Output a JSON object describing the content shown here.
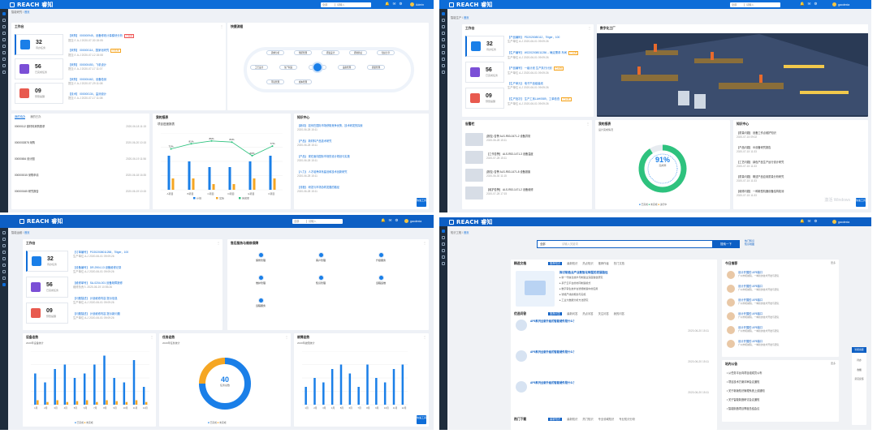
{
  "panels": {
    "tl": {
      "brand": "REACH 睿知",
      "search": {
        "scope": "全部",
        "placeholder": "请输入"
      },
      "user": "Admin",
      "breadcrumb": {
        "home": "智能研究",
        "current": "首页"
      },
      "workbench": "工作台",
      "quick": "快捷流程",
      "stats": [
        {
          "n": "32",
          "l": "待办任务"
        },
        {
          "n": "56",
          "l": "已完成任务"
        },
        {
          "n": "09",
          "l": "预警提醒"
        }
      ],
      "tasks": [
        {
          "title": "【采购】 000000945，设备修改计量模块分析",
          "tag": "已逾期",
          "meta": "提交人  A-J      2020-07-30 15:05"
        },
        {
          "title": "【采购】 000000114，国家化研究",
          "tag": "待处理",
          "meta": "提交人  A-J      2020-07-12 15:08"
        },
        {
          "title": "【采购】 000000450，飞机设计",
          "tag": "",
          "meta": "提交人  A-J      2020-07-17 11:07"
        },
        {
          "title": "【采购】 000000462，设备检测",
          "tag": "",
          "meta": "提交人  A-J      2020-07-29 11:08"
        },
        {
          "title": "【技术】 000000134，监测设计",
          "tag": "",
          "meta": "提交人  A-J      2020-07-17 11:08"
        }
      ],
      "flows": [
        "需求分析",
        "预研管理",
        "研发设计",
        "研制验证",
        "知识分享",
        "工艺设计",
        "生产制造",
        "维修保养",
        "设备管理",
        "质量管理",
        "环境管理",
        "成本管理"
      ],
      "lower": {
        "tabs": [
          "我的待办",
          "我的已办"
        ],
        "rows": [
          {
            "t": "00000112 原材料采购需求",
            "d": "2020-06-18 11:15"
          },
          {
            "t": "0000002878 采购",
            "d": "2020-06-20 10:15"
          },
          {
            "t": "00000654 设计图",
            "d": "2020-06-19 11:56"
          },
          {
            "t": "000000015 采购申请",
            "d": "2020-06-18 16:35"
          },
          {
            "t": "000000165 研究报告",
            "d": "2020-06-19 10:15"
          }
        ],
        "chart_title": "我的报表",
        "chart_sub": "项目进度报表",
        "news_title": "知识中心",
        "news": [
          {
            "t": "【新闻】 如何在国际市场获取竞争优势，技术研发的探索",
            "d": "2020-06-28 15:11"
          },
          {
            "t": "【产品】 新材料产品技术研究",
            "d": "2020-06-28 15:11"
          },
          {
            "t": "【产品】 现在面向国际市场的设计规划与实施",
            "d": "2020-06-28 15:11"
          },
          {
            "t": "【人力】 人才培养体系建设和技术创新研究",
            "d": "2020-06-28 15:11"
          },
          {
            "t": "【流程】 研发与市场协同发展的路径",
            "d": "2020-06-28 15:11"
          }
        ],
        "legend": [
          "计划",
          "实际",
          "完成率"
        ]
      }
    },
    "tr": {
      "brand": "REACH 睿知",
      "user": "gaodexia",
      "breadcrumb": {
        "home": "智能生产",
        "current": "首页"
      },
      "workbench": "工作台",
      "factory": "数字化工厂",
      "stats": [
        {
          "n": "32",
          "l": "待办任务"
        },
        {
          "n": "56",
          "l": "已完成任务"
        },
        {
          "n": "09",
          "l": "预警提醒"
        }
      ],
      "tasks": [
        {
          "title": "【产品编码】 PD2020080112，Tiliger，100",
          "meta": "生产单位  A-J   2020-06-01 09:09:26"
        },
        {
          "title": "【生产编号】 WO202008011256 -- 确定需求-车间",
          "tag": "已完成",
          "meta": "生产单位  A-J   2020-06-01 09:09:26"
        },
        {
          "title": "【产品编号】 一级计划 生产执行计划",
          "tag": "已完成",
          "meta": "生产单位  A-J   2020-06-01 09:09:26"
        },
        {
          "title": "【生产单元】 电子产品组装线",
          "meta": "生产单位  A-J   2020-06-01 09:09:26"
        },
        {
          "title": "【生产批次】 生产工序LAH0589，工单检查",
          "tag": "已完成",
          "meta": "生产单位  A-J   2020-06-01 09:09:26"
        }
      ],
      "alarm_title": "告警栏",
      "report_title": "我的报表",
      "report_sub": "设计完成情况",
      "pct": "91%",
      "pct_label": "完成率",
      "news_title": "知识中心",
      "alarms": [
        {
          "t": "(报告) 告警 ALS-R53-0471-2 设备异常",
          "d": "2020-06-28 15:11"
        },
        {
          "t": "【工作告警】 ALS-R53-1471-3 设备温度",
          "d": "2020-07-28 15:11"
        },
        {
          "t": "(报告) 告警 ALS-R53-1471-8 设备报废",
          "d": "2020-06-30 11:15"
        },
        {
          "t": "【维护告警】 ALS-R53-1471-2 设备维修",
          "d": "2020-07-28 17:15"
        }
      ],
      "news": [
        {
          "t": "【质量问题】 设备工作点维护知识",
          "d": "2020-07-15 09:02"
        },
        {
          "t": "【产品问题】 ID设备研究报告",
          "d": "2020-07-15 11:33"
        },
        {
          "t": "【工艺问题】 绿色产品生产运行设计研究",
          "d": "2020-07-15 11:33"
        },
        {
          "t": "【质量问题】 概述产品应用质量分析研究",
          "d": "2020-07-15 11:33"
        },
        {
          "t": "【维修问题】 一种新型机器设备结构检测",
          "d": "2020-07-15 11:33"
        }
      ],
      "legend": [
        "已完成",
        "未完成",
        "进行中"
      ],
      "watermark": "激活 Windows"
    },
    "bl": {
      "brand": "REACH 睿知",
      "user": "gaodexia",
      "breadcrumb": {
        "home": "智能运维",
        "current": "首页"
      },
      "workbench": "工作台",
      "ops_title": "售后服务与维修保障",
      "stats": [
        {
          "n": "32",
          "l": "待办任务"
        },
        {
          "n": "56",
          "l": "已完成任务"
        },
        {
          "n": "09",
          "l": "预警提醒"
        }
      ],
      "tasks": [
        {
          "title": "【订单编号】 PO202008011258，Tiliger，100",
          "meta": "生产单位  A-J   2020-06-01 09:09:26"
        },
        {
          "title": "【设备编号】 DR-2904-13 设备维修记录",
          "meta": "生产单位  A-J   2020-06-01 09:09:26"
        },
        {
          "title": "【维修单号】 SA-0204-001 设备故障报修",
          "meta": "维修负责人  2020-06-19 10:55:26"
        },
        {
          "title": "【问题描述】 计划维修内容 提示信息",
          "meta": "生产单位  A-J   2020-06-01 09:09:26"
        },
        {
          "title": "【问题描述】 计划维修内容 提示新问题",
          "meta": "生产单位  A-J   2020-06-01 09:09:26"
        }
      ],
      "ops": [
        "保修管理",
        "客户管理",
        "升级服务",
        "维护管理",
        "知识管理",
        "远程运维",
        "远程服务"
      ],
      "chart1_title": "设备态势",
      "chart1_sub": "2020年设备统计",
      "chart2_title": "任务态势",
      "chart2_sub": "2020年任务统计",
      "center": "40",
      "center_label": "任务总数",
      "chart3_title": "故障态势",
      "chart3_sub": "2020年故障统计",
      "legend": [
        "已完成",
        "未完成"
      ]
    },
    "br": {
      "brand": "REACH 睿知",
      "user": "gaodexia",
      "breadcrumb": {
        "home": "知识工程",
        "current": "首页"
      },
      "search": {
        "scope": "全部",
        "placeholder": "请输入关键词",
        "button": "搜索一下"
      },
      "hot1": "热门知识",
      "hot2": "知识地图",
      "recommend": "精选文档",
      "tabs1": [
        "推荐知识",
        "最新知识",
        "热点知识",
        "推荐作者",
        "热门文档"
      ],
      "doc_title": "探讨制造业产业数智化转型的发展路径",
      "doc_lines": [
        "新一代信息技术与制造业深度融合研究",
        "基于云平台的协同制造模式",
        "数字孪生技术在智能制造中的应用",
        "智能产线的规划与实施",
        "工业大数据分析方法研究"
      ],
      "qa": "优选问答",
      "tabs2": [
        "推荐问答",
        "最新问答",
        "热点问答",
        "关注问答",
        "我的问答"
      ],
      "qa_items": [
        {
          "t": "AP8系列全新升级的智能硬件是什么？",
          "d": "2020-06-20 15:11"
        },
        {
          "t": "AP8系列全新升级的智能硬件是什么？",
          "d": "2020-06-20 15:11"
        },
        {
          "t": "AP8系列全新升级的智能硬件是什么？",
          "d": "2020-06-20 15:11"
        }
      ],
      "hotdown": "热门下载",
      "tabs3": [
        "最新知识",
        "最新知识",
        "热门知识",
        "专业领域知识",
        "专业知识分析"
      ],
      "today": "今日推荐",
      "more": "更多",
      "recs": [
        {
          "t": "设计开展的 AP8接口",
          "s": "广州市机械院，一种新的技术开发与研究"
        },
        {
          "t": "设计开展的 AP8接口",
          "s": "广州市机械院，一种新的技术开发与研究"
        },
        {
          "t": "设计开展的 AP8接口",
          "s": "广州市机械院，一种新的技术开发与研究"
        },
        {
          "t": "设计开展的 AP8接口",
          "s": "广州市机械院，一种新的技术开发与研究"
        },
        {
          "t": "设计开展的 AP8接口",
          "s": "广州市机械院，一种新的技术开发与研究"
        },
        {
          "t": "设计开展的 AP8接口",
          "s": "广州市机械院，一种新的技术开发与研究"
        }
      ],
      "notice": "站内公告",
      "notices": [
        "从任务平台向项目组成员公布",
        "项目技术方案评审会议通知",
        "关于新版知识管理系统上线通知",
        "关于智能制造研讨会议通知",
        "智能制造项目季度总结会议"
      ],
      "float": [
        "智能客服",
        "待办",
        "收藏",
        "意见反馈"
      ]
    },
    "float_btn": "快速工具"
  },
  "chart_data": [
    {
      "type": "bar",
      "title": "项目进度报表",
      "categories": [
        "A项目",
        "B项目",
        "C项目",
        "D项目",
        "E项目",
        "F项目"
      ],
      "series": [
        {
          "name": "计划",
          "values": [
            60,
            50,
            40,
            40,
            50,
            60
          ]
        },
        {
          "name": "实际",
          "values": [
            20,
            20,
            10,
            10,
            20,
            20
          ]
        },
        {
          "name": "完成率",
          "values": [
            72,
            81,
            86,
            84,
            60,
            77
          ]
        }
      ],
      "ylim": [
        0,
        100
      ]
    },
    {
      "type": "pie",
      "title": "设计完成情况",
      "series": [
        {
          "name": "已完成",
          "values": [
            91
          ]
        },
        {
          "name": "未完成",
          "values": [
            9
          ]
        }
      ]
    },
    {
      "type": "bar",
      "title": "2020年设备统计",
      "categories": [
        "1月",
        "2月",
        "3月",
        "4月",
        "5月",
        "6月",
        "7月",
        "8月",
        "9月",
        "10月",
        "11月",
        "12月"
      ],
      "series": [
        {
          "name": "已完成",
          "values": [
            35,
            25,
            40,
            45,
            30,
            35,
            45,
            55,
            30,
            25,
            50,
            20
          ]
        },
        {
          "name": "未完成",
          "values": [
            5,
            3,
            5,
            3,
            4,
            5,
            3,
            5,
            4,
            3,
            5,
            3
          ]
        }
      ],
      "ylim": [
        0,
        60
      ]
    },
    {
      "type": "pie",
      "title": "2020年任务统计",
      "series": [
        {
          "name": "已完成",
          "values": [
            75
          ]
        },
        {
          "name": "未完成",
          "values": [
            25
          ]
        }
      ]
    },
    {
      "type": "bar",
      "title": "2020年故障统计",
      "categories": [
        "1月",
        "2月",
        "3月",
        "4月",
        "5月",
        "6月",
        "7月",
        "8月",
        "9月",
        "10月",
        "11月",
        "12月"
      ],
      "series": [
        {
          "name": "已完成",
          "values": [
            20,
            30,
            25,
            40,
            45,
            35,
            20,
            45,
            30,
            25,
            40,
            45
          ]
        }
      ],
      "ylim": [
        0,
        60
      ]
    }
  ]
}
